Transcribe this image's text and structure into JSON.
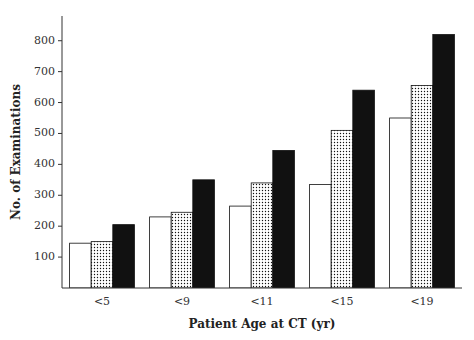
{
  "chart_data": {
    "type": "bar",
    "categories": [
      "<5",
      "<9",
      "<11",
      "<15",
      "<19"
    ],
    "series": [
      {
        "color": "#ffffff",
        "values": [
          145,
          230,
          265,
          335,
          550
        ]
      },
      {
        "values": [
          150,
          245,
          340,
          510,
          655
        ]
      },
      {
        "color": "#111111",
        "values": [
          205,
          350,
          445,
          640,
          820
        ]
      }
    ],
    "xlabel": "Patient Age at CT (yr)",
    "ylabel": "No. of Examinations",
    "ylim": [
      0,
      880
    ],
    "yticks": [
      100,
      200,
      300,
      400,
      500,
      600,
      700,
      800
    ],
    "grid": false
  }
}
